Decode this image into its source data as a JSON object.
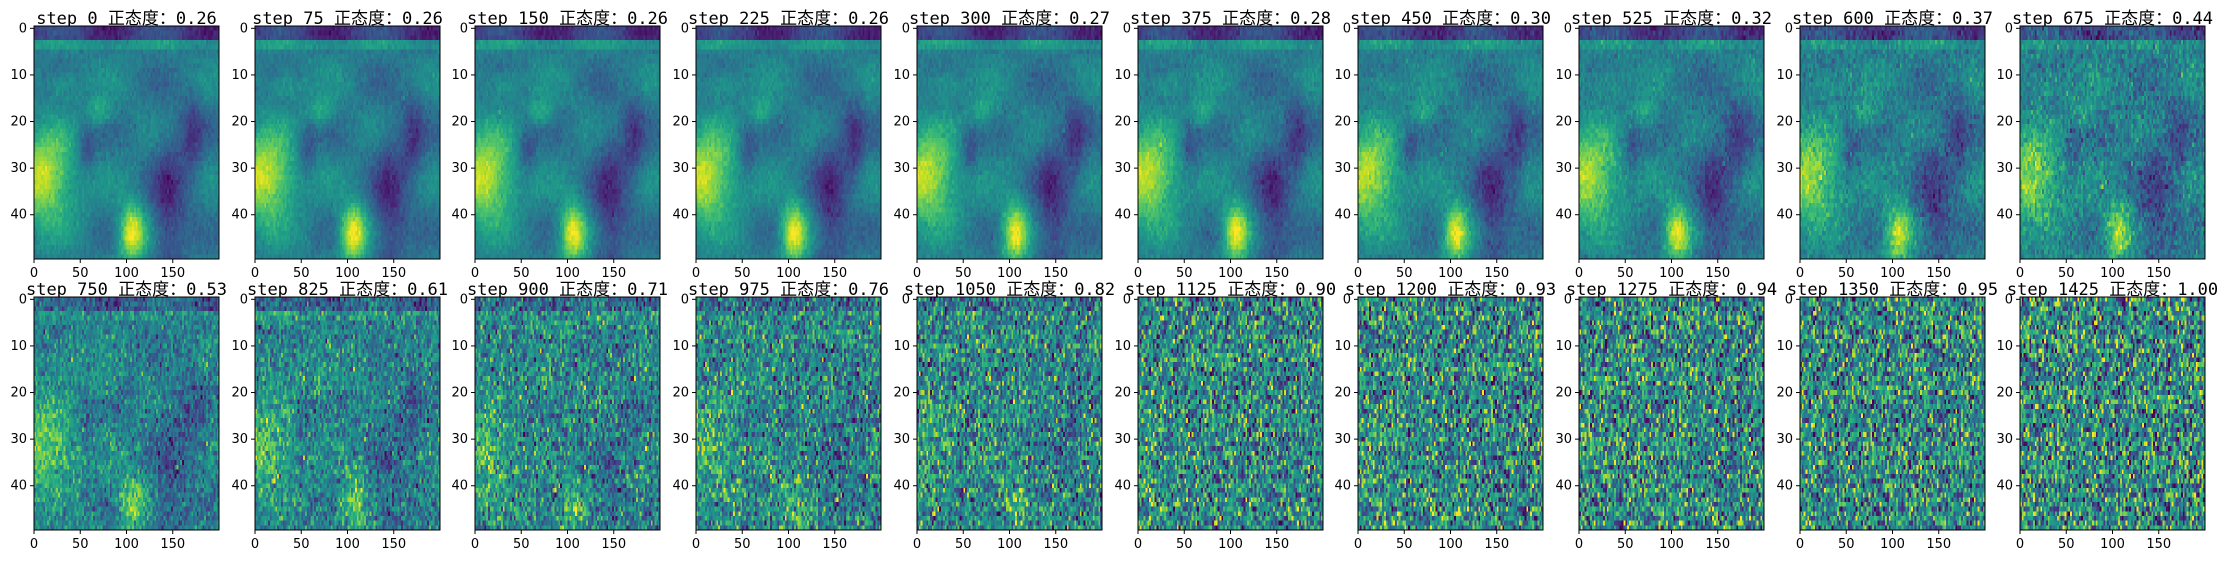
{
  "chart_data": {
    "type": "heatmap",
    "colormap": "viridis",
    "grid_layout": "2 rows x 10 columns",
    "x_ticks": [
      "0",
      "50",
      "100",
      "150"
    ],
    "y_ticks": [
      "0",
      "10",
      "20",
      "30",
      "40"
    ],
    "xlim": [
      0,
      200
    ],
    "ylim": [
      50,
      0
    ],
    "panels": [
      {
        "title": "step 0 正态度：0.26",
        "step": 0,
        "normality": 0.26
      },
      {
        "title": "step 75 正态度：0.26",
        "step": 75,
        "normality": 0.26
      },
      {
        "title": "step 150 正态度：0.26",
        "step": 150,
        "normality": 0.26
      },
      {
        "title": "step 225 正态度：0.26",
        "step": 225,
        "normality": 0.26
      },
      {
        "title": "step 300 正态度：0.27",
        "step": 300,
        "normality": 0.27
      },
      {
        "title": "step 375 正态度：0.28",
        "step": 375,
        "normality": 0.28
      },
      {
        "title": "step 450 正态度：0.30",
        "step": 450,
        "normality": 0.3
      },
      {
        "title": "step 525 正态度：0.32",
        "step": 525,
        "normality": 0.32
      },
      {
        "title": "step 600 正态度：0.37",
        "step": 600,
        "normality": 0.37
      },
      {
        "title": "step 675 正态度：0.44",
        "step": 675,
        "normality": 0.44
      },
      {
        "title": "step 750 正态度：0.53",
        "step": 750,
        "normality": 0.53
      },
      {
        "title": "step 825 正态度：0.61",
        "step": 825,
        "normality": 0.61
      },
      {
        "title": "step 900 正态度：0.71",
        "step": 900,
        "normality": 0.71
      },
      {
        "title": "step 975 正态度：0.76",
        "step": 975,
        "normality": 0.76
      },
      {
        "title": "step 1050 正态度：0.82",
        "step": 1050,
        "normality": 0.82
      },
      {
        "title": "step 1125 正态度：0.90",
        "step": 1125,
        "normality": 0.9
      },
      {
        "title": "step 1200 正态度：0.93",
        "step": 1200,
        "normality": 0.93
      },
      {
        "title": "step 1275 正态度：0.94",
        "step": 1275,
        "normality": 0.94
      },
      {
        "title": "step 1350 正态度：0.95",
        "step": 1350,
        "normality": 0.95
      },
      {
        "title": "step 1425 正态度：1.00",
        "step": 1425,
        "normality": 1.0
      }
    ]
  }
}
